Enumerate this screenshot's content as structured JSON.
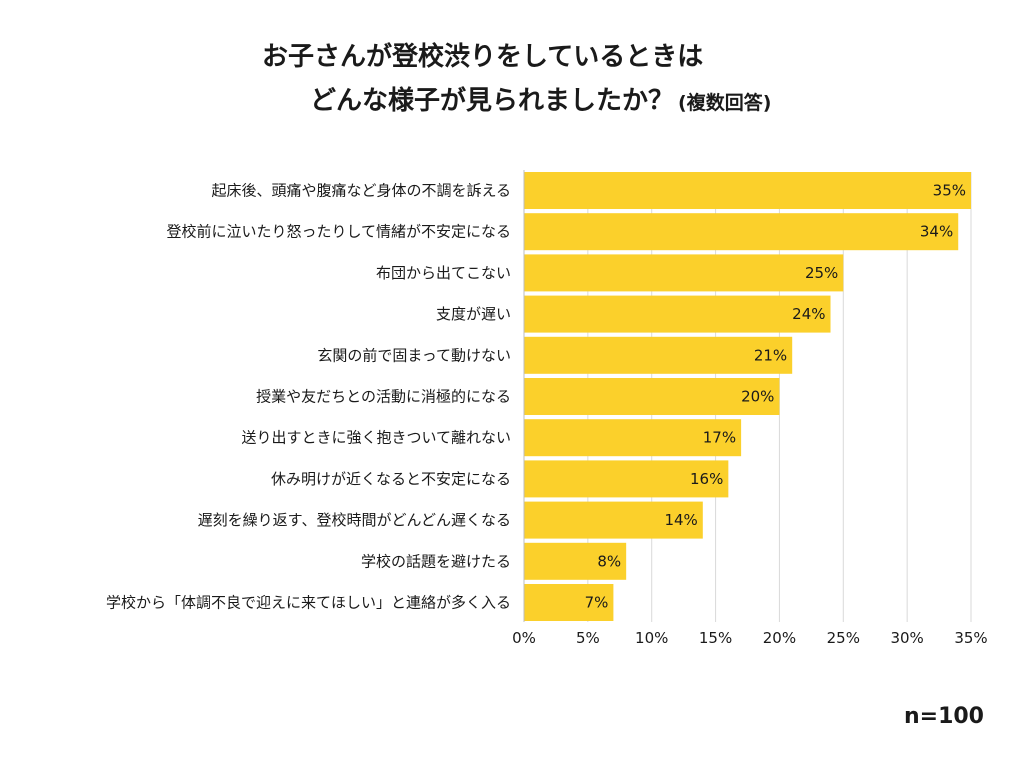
{
  "title": {
    "line1": "お子さんが登校渋りをしているときは",
    "line2": "どんな様子が見られましたか？",
    "line2_note": "(複数回答)"
  },
  "sample_size": "n=100",
  "colors": {
    "bar": "#fbd02b",
    "grid": "#d9d9d9",
    "axis": "#bdbdbd"
  },
  "chart_data": {
    "type": "bar",
    "orientation": "horizontal",
    "title": "お子さんが登校渋りをしているときは どんな様子が見られましたか？ (複数回答)",
    "xlabel": "",
    "ylabel": "",
    "xlim": [
      0,
      35
    ],
    "grid": true,
    "legend": "none",
    "categories": [
      "起床後、頭痛や腹痛など身体の不調を訴える",
      "登校前に泣いたり怒ったりして情緒が不安定になる",
      "布団から出てこない",
      "支度が遅い",
      "玄関の前で固まって動けない",
      "授業や友だちとの活動に消極的になる",
      "送り出すときに強く抱きついて離れない",
      "休み明けが近くなると不安定になる",
      "遅刻を繰り返す、登校時間がどんどん遅くなる",
      "学校の話題を避けたる",
      "学校から「体調不良で迎えに来てほしい」と連絡が多く入る"
    ],
    "values": [
      35,
      34,
      25,
      24,
      21,
      20,
      17,
      16,
      14,
      8,
      7
    ],
    "value_labels": [
      "35%",
      "34%",
      "25%",
      "24%",
      "21%",
      "20%",
      "17%",
      "16%",
      "14%",
      "8%",
      "7%"
    ],
    "x_ticks": [
      0,
      5,
      10,
      15,
      20,
      25,
      30,
      35
    ],
    "x_tick_labels": [
      "0%",
      "5%",
      "10%",
      "15%",
      "20%",
      "25%",
      "30%",
      "35%"
    ]
  }
}
